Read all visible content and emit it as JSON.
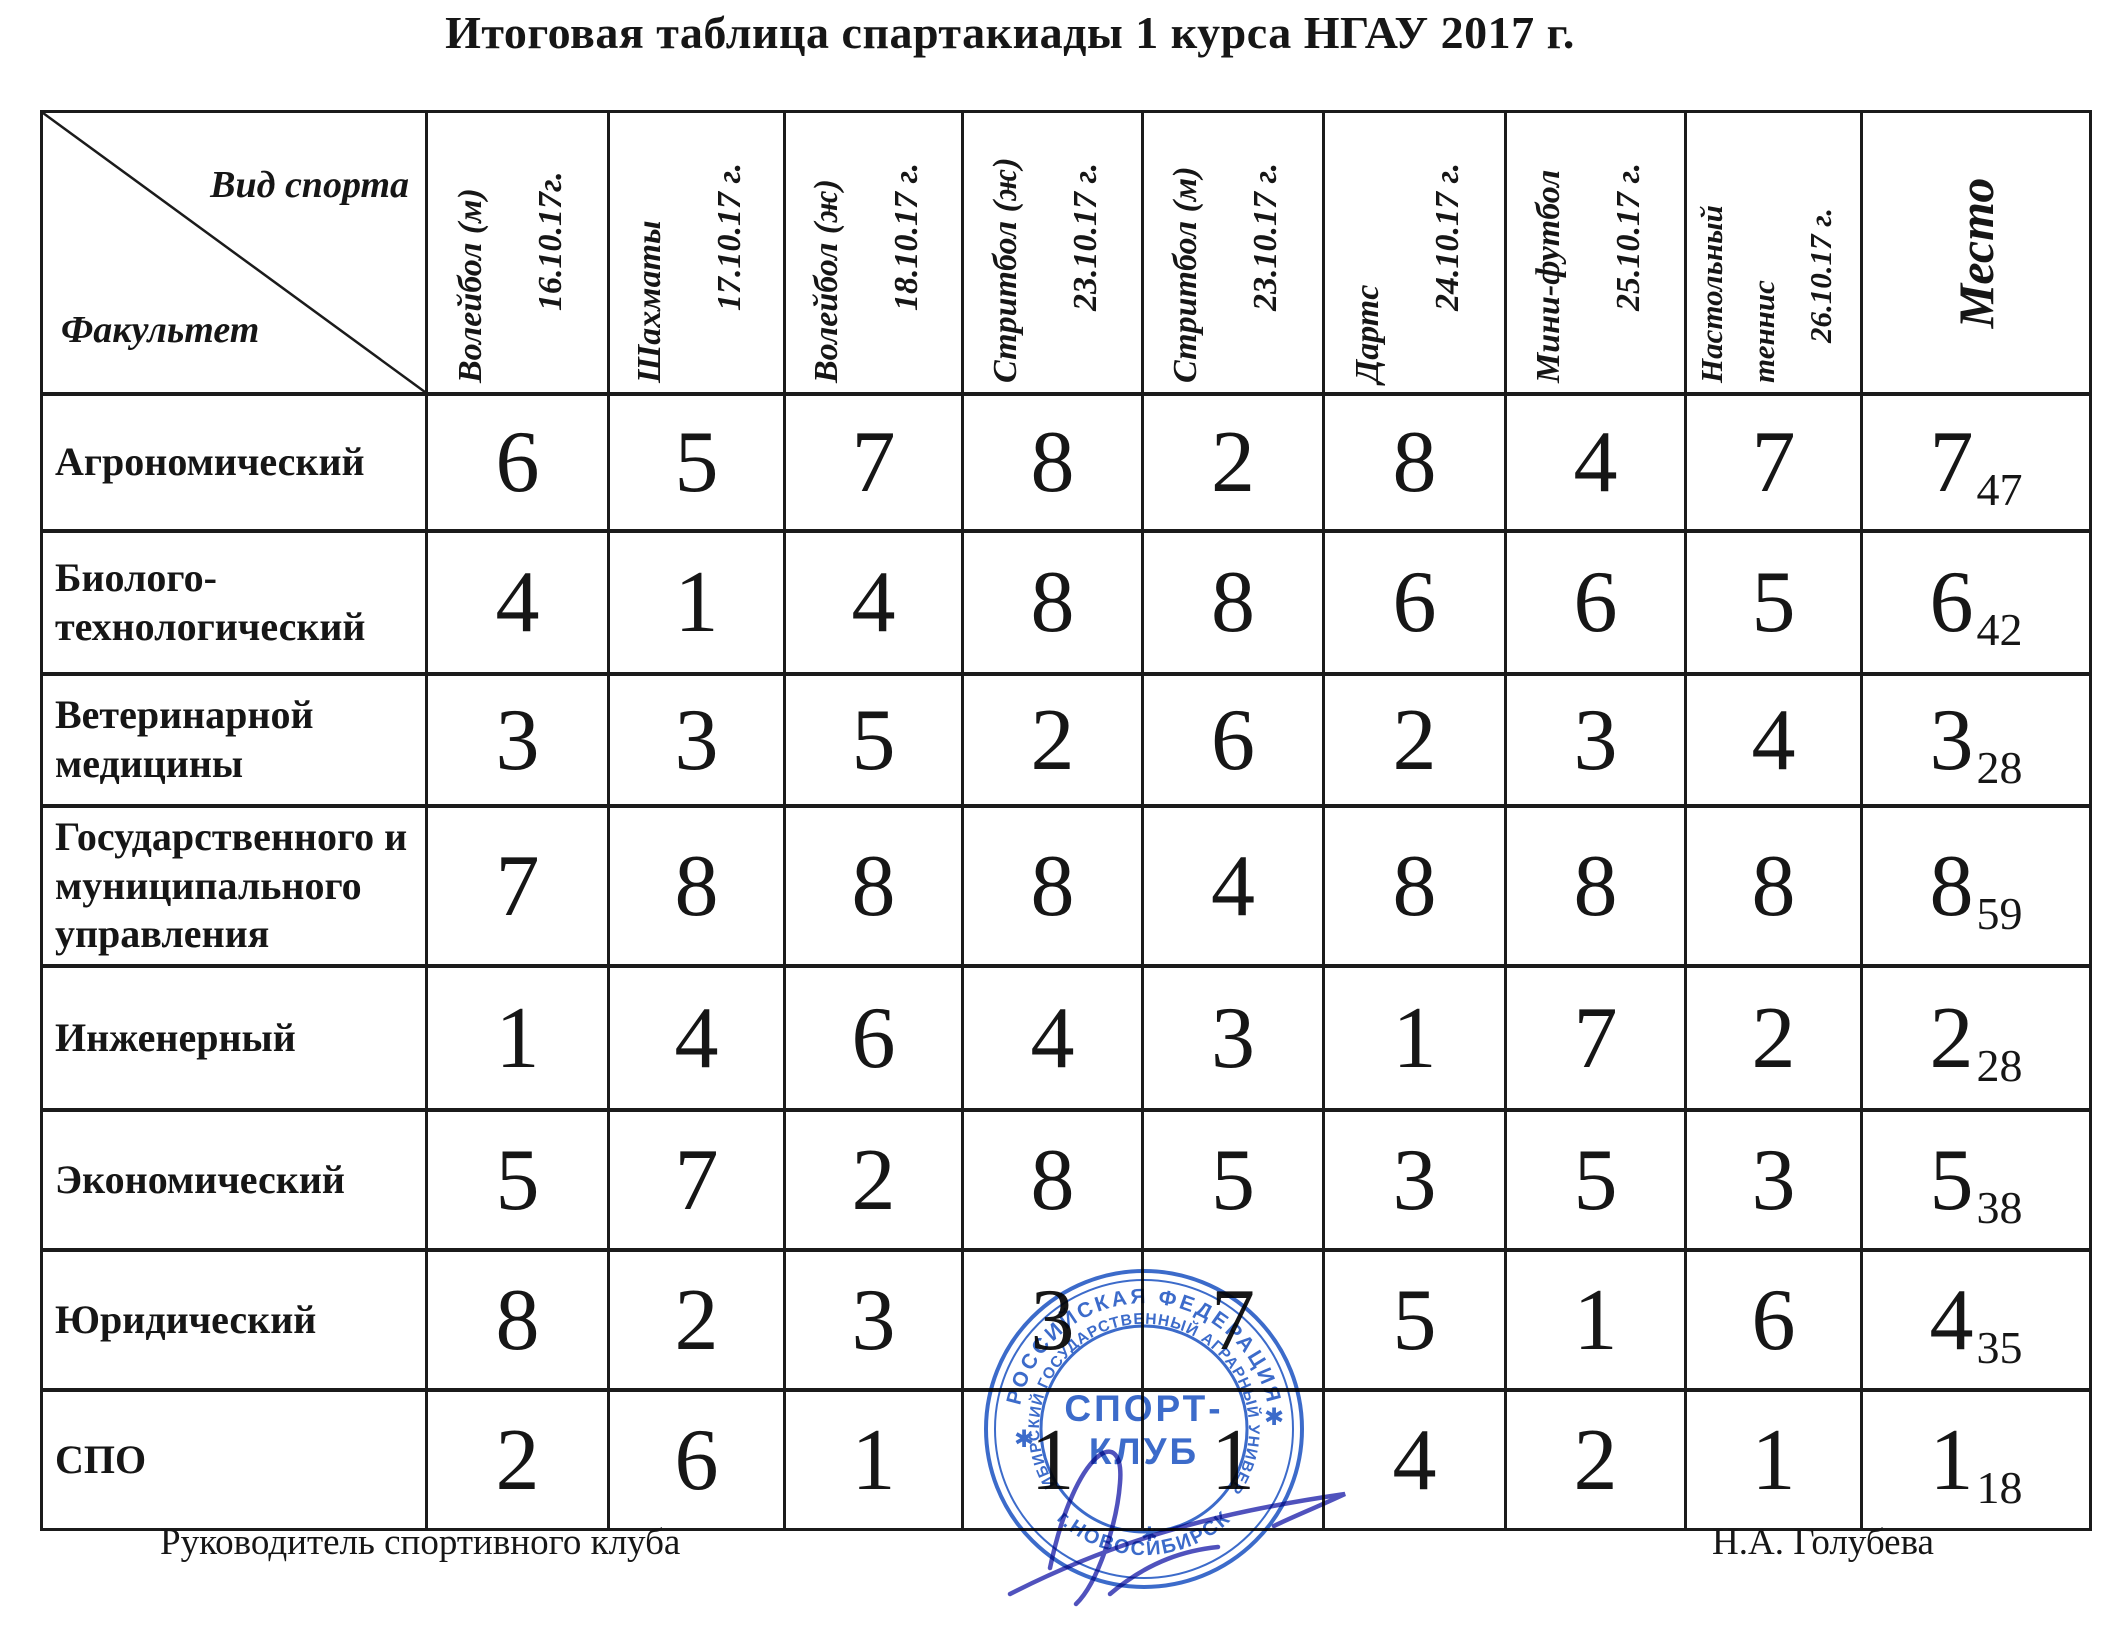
{
  "title": "Итоговая таблица спартакиады 1 курса НГАУ 2017 г.",
  "table": {
    "corner": {
      "top_label": "Вид спорта",
      "bottom_label": "Факультет"
    },
    "columns": [
      {
        "sport": "Волейбол (м)",
        "date": "16.10.17г."
      },
      {
        "sport": "Шахматы",
        "date": "17.10.17 г."
      },
      {
        "sport": "Волейбол (ж)",
        "date": "18.10.17 г."
      },
      {
        "sport": "Стритбол (ж)",
        "date": "23.10.17 г."
      },
      {
        "sport": "Стритбол (м)",
        "date": "23.10.17 г."
      },
      {
        "sport": "Дартс",
        "date": "24.10.17 г."
      },
      {
        "sport": "Мини-футбол",
        "date": "25.10.17 г."
      },
      {
        "sport": "Настольный теннис",
        "date": "26.10.17 г."
      }
    ],
    "place_column_label": "Место",
    "rows": [
      {
        "faculty": "Агрономический",
        "scores": [
          6,
          5,
          7,
          8,
          2,
          8,
          4,
          7
        ],
        "place": 7,
        "points": 47
      },
      {
        "faculty": "Биолого-технологический",
        "scores": [
          4,
          1,
          4,
          8,
          8,
          6,
          6,
          5
        ],
        "place": 6,
        "points": 42
      },
      {
        "faculty": "Ветеринарной медицины",
        "scores": [
          3,
          3,
          5,
          2,
          6,
          2,
          3,
          4
        ],
        "place": 3,
        "points": 28
      },
      {
        "faculty": "Государственного и муниципального управления",
        "scores": [
          7,
          8,
          8,
          8,
          4,
          8,
          8,
          8
        ],
        "place": 8,
        "points": 59
      },
      {
        "faculty": "Инженерный",
        "scores": [
          1,
          4,
          6,
          4,
          3,
          1,
          7,
          2
        ],
        "place": 2,
        "points": 28
      },
      {
        "faculty": "Экономический",
        "scores": [
          5,
          7,
          2,
          8,
          5,
          3,
          5,
          3
        ],
        "place": 5,
        "points": 38
      },
      {
        "faculty": "Юридический",
        "scores": [
          8,
          2,
          3,
          3,
          7,
          5,
          1,
          6
        ],
        "place": 4,
        "points": 35
      },
      {
        "faculty": "СПО",
        "scores": [
          2,
          6,
          1,
          1,
          1,
          4,
          2,
          1
        ],
        "place": 1,
        "points": 18
      }
    ]
  },
  "footer": {
    "left": "Руководитель спортивного клуба",
    "right": "Н.А. Голубева"
  },
  "stamp": {
    "outer_top": "РОССИЙСКАЯ ФЕДЕРАЦИЯ",
    "inner_ring": "НОВОСИБИРСКИЙ ГОСУДАРСТВЕННЫЙ АГРАРНЫЙ УНИВЕРСИТЕТ",
    "outer_bottom": "г.НОВОСИБИРСК",
    "center_line1": "СПОРТ-",
    "center_line2": "КЛУБ",
    "ink_color": "#2b5ec6",
    "signature_color": "#3d3fb6"
  }
}
